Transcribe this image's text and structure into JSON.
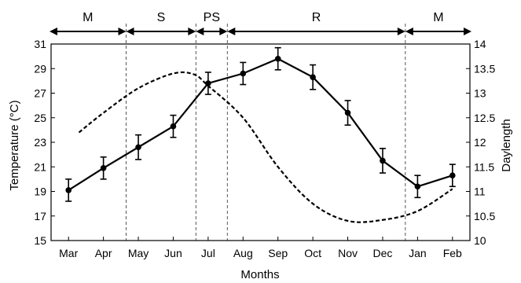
{
  "chart_data": {
    "type": "line",
    "title": "",
    "xlabel": "Months",
    "ylabel": "Temperature (°C)",
    "y2label": "Daylength",
    "categories": [
      "Mar",
      "Apr",
      "May",
      "Jun",
      "Jul",
      "Aug",
      "Sep",
      "Oct",
      "Nov",
      "Dec",
      "Jan",
      "Feb"
    ],
    "ylim": [
      15,
      31
    ],
    "yticks": [
      15,
      17,
      19,
      21,
      23,
      25,
      27,
      29,
      31
    ],
    "y2lim": [
      10,
      14
    ],
    "y2ticks": [
      "10",
      "10.5",
      "11",
      "11.5",
      "12",
      "12.5",
      "13",
      "13.5",
      "14"
    ],
    "grid": false,
    "series": [
      {
        "axis": "left",
        "style": "solid-with-markers-and-error-bars",
        "color": "#000000",
        "values": [
          19.1,
          20.9,
          22.6,
          24.3,
          27.8,
          28.6,
          29.8,
          28.3,
          25.4,
          21.5,
          19.4,
          20.3
        ],
        "errors": [
          0.9,
          0.9,
          1.0,
          0.9,
          0.9,
          0.9,
          0.9,
          1.0,
          1.0,
          1.0,
          0.9,
          0.9
        ]
      },
      {
        "axis": "right",
        "style": "dashed",
        "color": "#000000",
        "x": [
          0.3,
          1.0,
          2.0,
          3.0,
          3.6,
          4.0,
          5.0,
          6.0,
          7.0,
          8.0,
          9.0,
          10.0,
          11.0
        ],
        "values": [
          12.2,
          12.6,
          13.1,
          13.4,
          13.38,
          13.15,
          12.5,
          11.5,
          10.75,
          10.4,
          10.42,
          10.6,
          11.05
        ]
      }
    ],
    "phases": [
      {
        "label": "M",
        "from": -0.65,
        "to": 1.65
      },
      {
        "label": "S",
        "from": 1.65,
        "to": 3.65
      },
      {
        "label": "PS",
        "from": 3.65,
        "to": 4.55
      },
      {
        "label": "R",
        "from": 4.55,
        "to": 9.65
      },
      {
        "label": "M",
        "from": 9.65,
        "to": 11.65
      }
    ]
  }
}
